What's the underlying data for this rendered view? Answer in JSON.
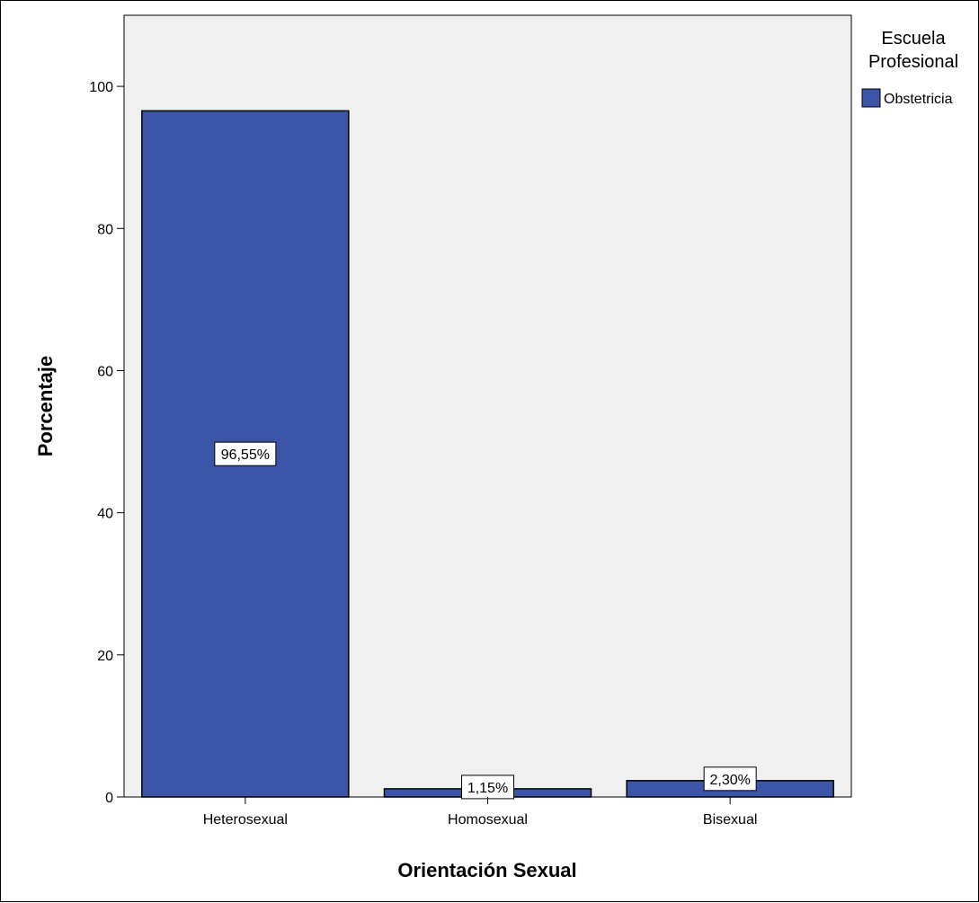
{
  "chart_data": {
    "type": "bar",
    "categories": [
      "Heterosexual",
      "Homosexual",
      "Bisexual"
    ],
    "series": [
      {
        "name": "Obstetricia",
        "values": [
          96.55,
          1.15,
          2.3
        ],
        "color": "#3d55a6"
      }
    ],
    "data_labels": [
      "96,55%",
      "1,15%",
      "2,30%"
    ],
    "xlabel": "Orientación Sexual",
    "ylabel": "Porcentaje",
    "ylim": [
      0,
      110
    ],
    "yticks": [
      0,
      20,
      40,
      60,
      80,
      100
    ],
    "grid": false,
    "legend": {
      "title_lines": [
        "Escuela",
        "Profesional"
      ],
      "placement": "right"
    },
    "colors": {
      "plot_background": "#f0f0f0",
      "bar_outline": "#000000",
      "bar": "#3d55a6"
    }
  }
}
